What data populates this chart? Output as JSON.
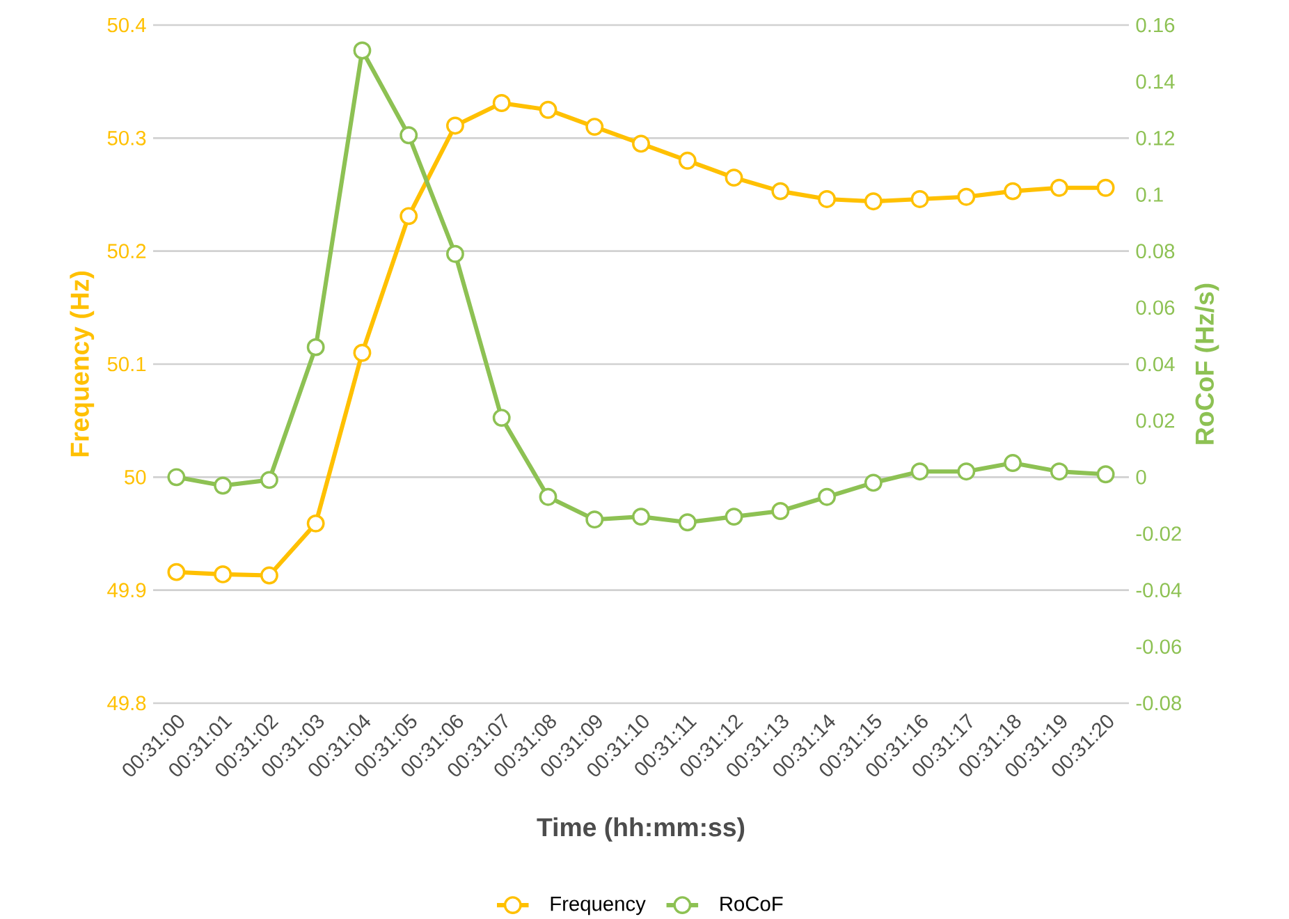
{
  "chart_data": {
    "type": "line",
    "xlabel": "Time (hh:mm:ss)",
    "ylabel": "Frequency (Hz)",
    "y2label": "RoCoF (Hz/s)",
    "categories": [
      "00:31:00",
      "00:31:01",
      "00:31:02",
      "00:31:03",
      "00:31:04",
      "00:31:05",
      "00:31:06",
      "00:31:07",
      "00:31:08",
      "00:31:09",
      "00:31:10",
      "00:31:11",
      "00:31:12",
      "00:31:13",
      "00:31:14",
      "00:31:15",
      "00:31:16",
      "00:31:17",
      "00:31:18",
      "00:31:19",
      "00:31:20"
    ],
    "series": [
      {
        "name": "Frequency",
        "color": "#FFC000",
        "values": [
          49.916,
          49.914,
          49.913,
          49.959,
          50.11,
          50.231,
          50.311,
          50.331,
          50.325,
          50.31,
          50.295,
          50.28,
          50.265,
          50.253,
          50.246,
          50.244,
          50.246,
          50.248,
          50.253,
          50.256,
          50.256
        ]
      },
      {
        "name": "RoCoF",
        "color": "#8DC153",
        "axis": "y2",
        "values": [
          0,
          -0.003,
          -0.001,
          0.046,
          0.151,
          0.121,
          0.079,
          0.021,
          -0.007,
          -0.015,
          -0.014,
          -0.016,
          -0.014,
          -0.012,
          -0.007,
          -0.002,
          0.002,
          0.002,
          0.005,
          0.002,
          0.001
        ]
      }
    ],
    "ylim": [
      49.8,
      50.4
    ],
    "yticks": [
      49.8,
      49.9,
      50,
      50.1,
      50.2,
      50.3,
      50.4
    ],
    "y2lim": [
      -0.08,
      0.16
    ],
    "y2ticks": [
      -0.08,
      -0.06,
      -0.04,
      -0.02,
      0,
      0.02,
      0.04,
      0.06,
      0.08,
      0.1,
      0.12,
      0.14,
      0.16
    ],
    "grid": "y",
    "legend": "bottom",
    "marker": "circle",
    "line_style": "solid"
  }
}
